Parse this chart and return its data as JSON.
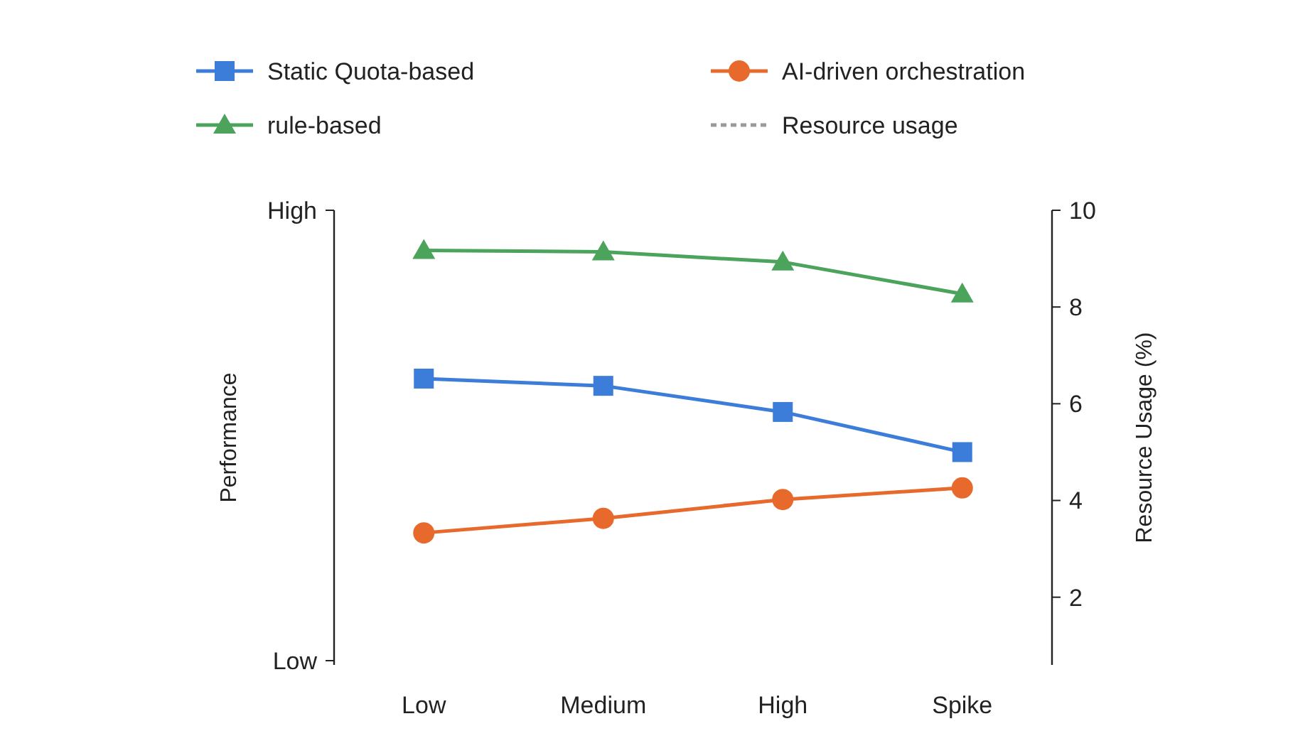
{
  "chart_data": {
    "type": "line",
    "categories": [
      "Low",
      "Medium",
      "High",
      "Spike"
    ],
    "ylabel": "Performance",
    "y2label": "Resource Usage (%)",
    "annotations": [
      "High",
      "Low"
    ],
    "y2lim": [
      0.6,
      10
    ],
    "y2ticks": [
      2,
      4,
      6,
      8,
      10
    ],
    "grid": false,
    "legend": "top",
    "series": [
      {
        "name": "Static Quota-based",
        "color": "#3b7dd8",
        "marker": "square",
        "line_style": "solid",
        "axis": "y2",
        "values": [
          6.52,
          6.37,
          5.83,
          5.0
        ]
      },
      {
        "name": "AI-driven orchestration",
        "color": "#e8692c",
        "marker": "circle",
        "line_style": "solid",
        "axis": "y2",
        "values": [
          3.33,
          3.63,
          4.02,
          4.26
        ]
      },
      {
        "name": "rule-based",
        "color": "#4ba35c",
        "marker": "triangle",
        "line_style": "solid",
        "axis": "y2",
        "values": [
          9.17,
          9.14,
          8.93,
          8.27
        ]
      },
      {
        "name": "Resource usage",
        "color": "#9a9a9a",
        "marker": "none",
        "line_style": "dashed",
        "axis": "y2",
        "values": [
          null,
          null,
          null,
          null
        ]
      }
    ]
  }
}
